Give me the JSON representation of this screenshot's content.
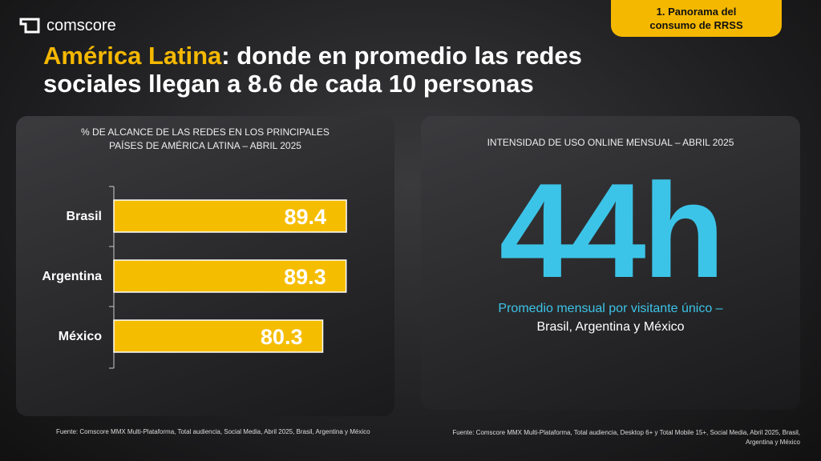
{
  "brand": "comscore",
  "section_tag": "1. Panorama del consumo de RRSS",
  "headline": {
    "highlight": "América Latina",
    "rest": ": donde en promedio las redes sociales llegan a 8.6 de cada 10 personas"
  },
  "chart_data": {
    "type": "bar",
    "orientation": "horizontal",
    "title": "% DE ALCANCE DE LAS REDES EN LOS PRINCIPALES PAÍSES DE AMÉRICA LATINA – ABRIL 2025",
    "categories": [
      "Brasil",
      "Argentina",
      "México"
    ],
    "values": [
      89.4,
      89.3,
      80.3
    ],
    "color": "#f5bd00"
  },
  "kpi_panel": {
    "title": "INTENSIDAD DE USO ONLINE MENSUAL – ABRIL 2025",
    "value": "44h",
    "caption_1": "Promedio mensual por visitante único –",
    "caption_2": "Brasil, Argentina y México"
  },
  "sources": {
    "left": "Fuente: Comscore MMX Multi-Plataforma, Total audiencia, Social Media, Abril 2025, Brasil, Argentina y México",
    "right": "Fuente: Comscore MMX Multi-Plataforma, Total audiencia, Desktop 6+ y Total Mobile 15+, Social Media, Abril 2025, Brasil, Argentina y México"
  }
}
